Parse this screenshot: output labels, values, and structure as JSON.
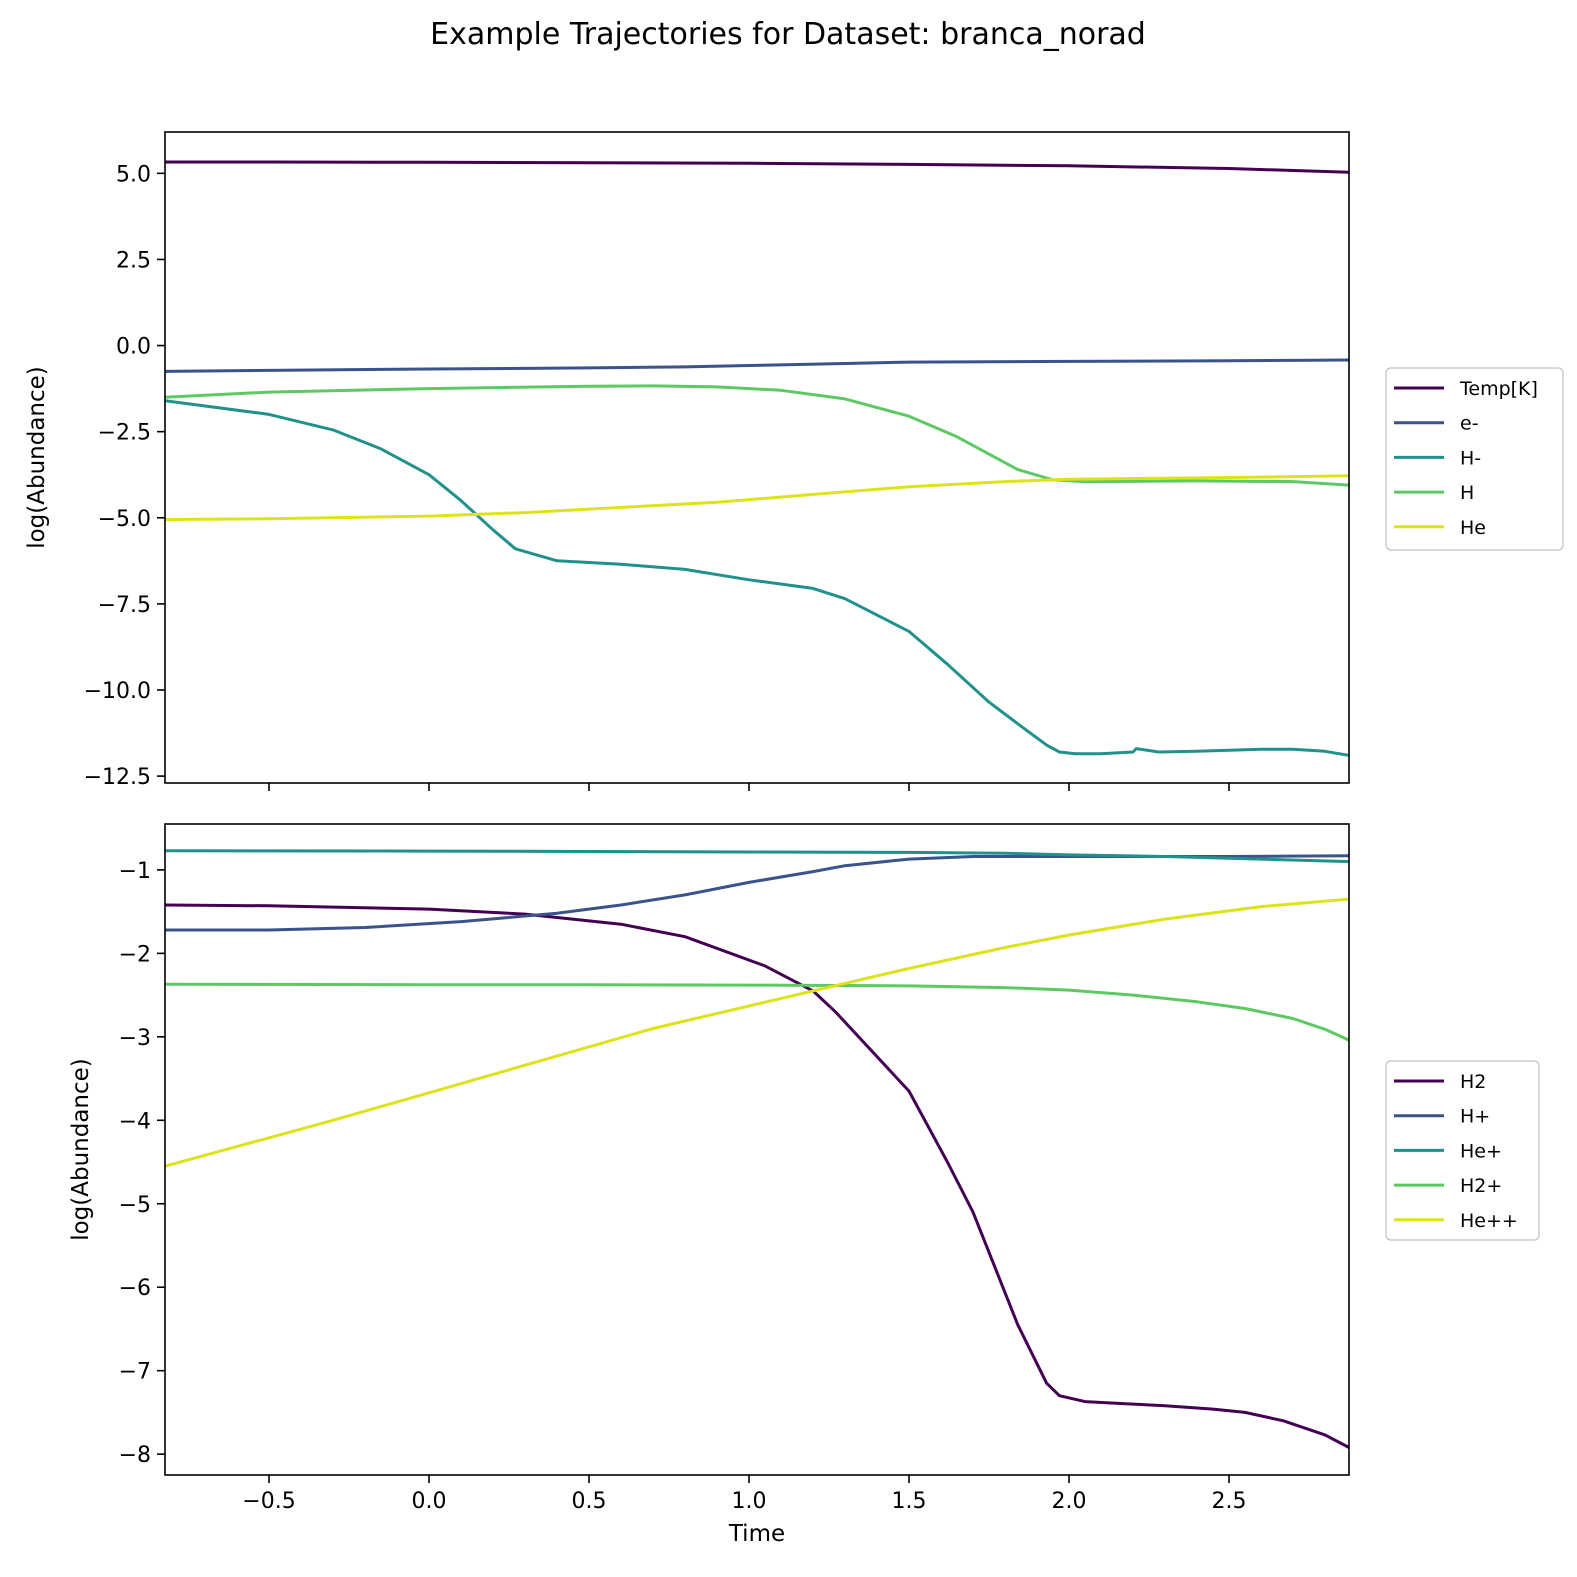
{
  "figure": {
    "title": "Example Trajectories for Dataset: branca_norad"
  },
  "chart_data": [
    {
      "type": "line",
      "title": "",
      "xlabel": "",
      "ylabel": "log(Abundance)",
      "xlim": [
        -0.825,
        2.875
      ],
      "ylim": [
        -12.7,
        6.2
      ],
      "xticks": [
        -0.5,
        0.0,
        0.5,
        1.0,
        1.5,
        2.0,
        2.5
      ],
      "xtick_labels": [],
      "yticks": [
        5.0,
        2.5,
        0.0,
        -2.5,
        -5.0,
        -7.5,
        -10.0,
        -12.5
      ],
      "ytick_labels": [
        "5.0",
        "2.5",
        "0.0",
        "−2.5",
        "−5.0",
        "−7.5",
        "−10.0",
        "−12.5"
      ],
      "grid": false,
      "legend_position": "right",
      "series": [
        {
          "name": "Temp[K]",
          "color": "#440154",
          "x": [
            -0.825,
            -0.5,
            0.0,
            0.5,
            1.0,
            1.5,
            2.0,
            2.5,
            2.875
          ],
          "y": [
            5.33,
            5.33,
            5.32,
            5.31,
            5.29,
            5.26,
            5.22,
            5.14,
            5.03
          ]
        },
        {
          "name": "e-",
          "color": "#3b528b",
          "x": [
            -0.825,
            -0.5,
            0.0,
            0.5,
            0.8,
            1.0,
            1.3,
            1.5,
            2.0,
            2.5,
            2.875
          ],
          "y": [
            -0.75,
            -0.72,
            -0.68,
            -0.65,
            -0.62,
            -0.58,
            -0.52,
            -0.48,
            -0.46,
            -0.44,
            -0.42
          ]
        },
        {
          "name": "H-",
          "color": "#21918c",
          "x": [
            -0.825,
            -0.5,
            -0.3,
            -0.15,
            0.0,
            0.1,
            0.2,
            0.27,
            0.4,
            0.6,
            0.8,
            1.0,
            1.2,
            1.3,
            1.5,
            1.62,
            1.75,
            1.85,
            1.93,
            1.97,
            2.02,
            2.1,
            2.2,
            2.21,
            2.28,
            2.4,
            2.6,
            2.7,
            2.8,
            2.875
          ],
          "y": [
            -1.6,
            -2.0,
            -2.45,
            -3.0,
            -3.75,
            -4.5,
            -5.35,
            -5.9,
            -6.25,
            -6.35,
            -6.5,
            -6.8,
            -7.05,
            -7.35,
            -8.3,
            -9.25,
            -10.35,
            -11.05,
            -11.6,
            -11.8,
            -11.85,
            -11.85,
            -11.8,
            -11.7,
            -11.8,
            -11.78,
            -11.72,
            -11.72,
            -11.78,
            -11.9
          ]
        },
        {
          "name": "H",
          "color": "#5ec962",
          "x": [
            -0.825,
            -0.5,
            0.0,
            0.5,
            0.7,
            0.9,
            1.1,
            1.3,
            1.5,
            1.65,
            1.84,
            1.95,
            2.05,
            2.4,
            2.7,
            2.875
          ],
          "y": [
            -1.5,
            -1.35,
            -1.25,
            -1.18,
            -1.17,
            -1.2,
            -1.3,
            -1.55,
            -2.05,
            -2.65,
            -3.6,
            -3.9,
            -3.95,
            -3.93,
            -3.95,
            -4.05
          ]
        },
        {
          "name": "He",
          "color": "#dde318",
          "x": [
            -0.825,
            -0.5,
            0.0,
            0.3,
            0.6,
            0.9,
            1.2,
            1.5,
            1.8,
            2.0,
            2.3,
            2.6,
            2.875
          ],
          "y": [
            -5.05,
            -5.03,
            -4.95,
            -4.85,
            -4.7,
            -4.55,
            -4.32,
            -4.1,
            -3.95,
            -3.88,
            -3.85,
            -3.82,
            -3.78
          ]
        }
      ]
    },
    {
      "type": "line",
      "title": "",
      "xlabel": "Time",
      "ylabel": "log(Abundance)",
      "xlim": [
        -0.825,
        2.875
      ],
      "ylim": [
        -8.25,
        -0.45
      ],
      "xticks": [
        -0.5,
        0.0,
        0.5,
        1.0,
        1.5,
        2.0,
        2.5
      ],
      "xtick_labels": [
        "−0.5",
        "0.0",
        "0.5",
        "1.0",
        "1.5",
        "2.0",
        "2.5"
      ],
      "yticks": [
        -1,
        -2,
        -3,
        -4,
        -5,
        -6,
        -7,
        -8
      ],
      "ytick_labels": [
        "−1",
        "−2",
        "−3",
        "−4",
        "−5",
        "−6",
        "−7",
        "−8"
      ],
      "grid": false,
      "legend_position": "right",
      "series": [
        {
          "name": "H2",
          "color": "#440154",
          "x": [
            -0.825,
            -0.5,
            0.0,
            0.3,
            0.6,
            0.8,
            1.05,
            1.2,
            1.27,
            1.5,
            1.62,
            1.7,
            1.84,
            1.93,
            1.97,
            2.05,
            2.2,
            2.3,
            2.45,
            2.55,
            2.67,
            2.8,
            2.875
          ],
          "y": [
            -1.42,
            -1.43,
            -1.47,
            -1.53,
            -1.65,
            -1.8,
            -2.15,
            -2.45,
            -2.7,
            -3.65,
            -4.5,
            -5.1,
            -6.45,
            -7.15,
            -7.3,
            -7.37,
            -7.4,
            -7.42,
            -7.46,
            -7.5,
            -7.6,
            -7.77,
            -7.92
          ]
        },
        {
          "name": "H+",
          "color": "#3b528b",
          "x": [
            -0.825,
            -0.5,
            -0.2,
            0.1,
            0.4,
            0.6,
            0.8,
            1.0,
            1.2,
            1.3,
            1.5,
            1.7,
            2.0,
            2.5,
            2.875
          ],
          "y": [
            -1.72,
            -1.72,
            -1.69,
            -1.62,
            -1.52,
            -1.42,
            -1.3,
            -1.15,
            -1.02,
            -0.95,
            -0.87,
            -0.84,
            -0.84,
            -0.84,
            -0.83
          ]
        },
        {
          "name": "He+",
          "color": "#21918c",
          "x": [
            -0.825,
            0.0,
            0.5,
            1.0,
            1.5,
            1.8,
            2.0,
            2.3,
            2.6,
            2.875
          ],
          "y": [
            -0.77,
            -0.775,
            -0.78,
            -0.785,
            -0.79,
            -0.8,
            -0.82,
            -0.84,
            -0.87,
            -0.9
          ]
        },
        {
          "name": "H2+",
          "color": "#5ec962",
          "x": [
            -0.825,
            0.0,
            0.5,
            1.0,
            1.5,
            1.8,
            2.0,
            2.2,
            2.4,
            2.55,
            2.7,
            2.8,
            2.875
          ],
          "y": [
            -2.37,
            -2.375,
            -2.375,
            -2.38,
            -2.39,
            -2.41,
            -2.44,
            -2.5,
            -2.58,
            -2.66,
            -2.78,
            -2.91,
            -3.04
          ]
        },
        {
          "name": "He++",
          "color": "#dde318",
          "x": [
            -0.825,
            -0.3,
            0.2,
            0.7,
            1.2,
            1.5,
            1.8,
            2.0,
            2.3,
            2.6,
            2.875
          ],
          "y": [
            -4.55,
            -4.0,
            -3.45,
            -2.9,
            -2.45,
            -2.18,
            -1.93,
            -1.78,
            -1.59,
            -1.44,
            -1.35
          ]
        }
      ]
    }
  ]
}
